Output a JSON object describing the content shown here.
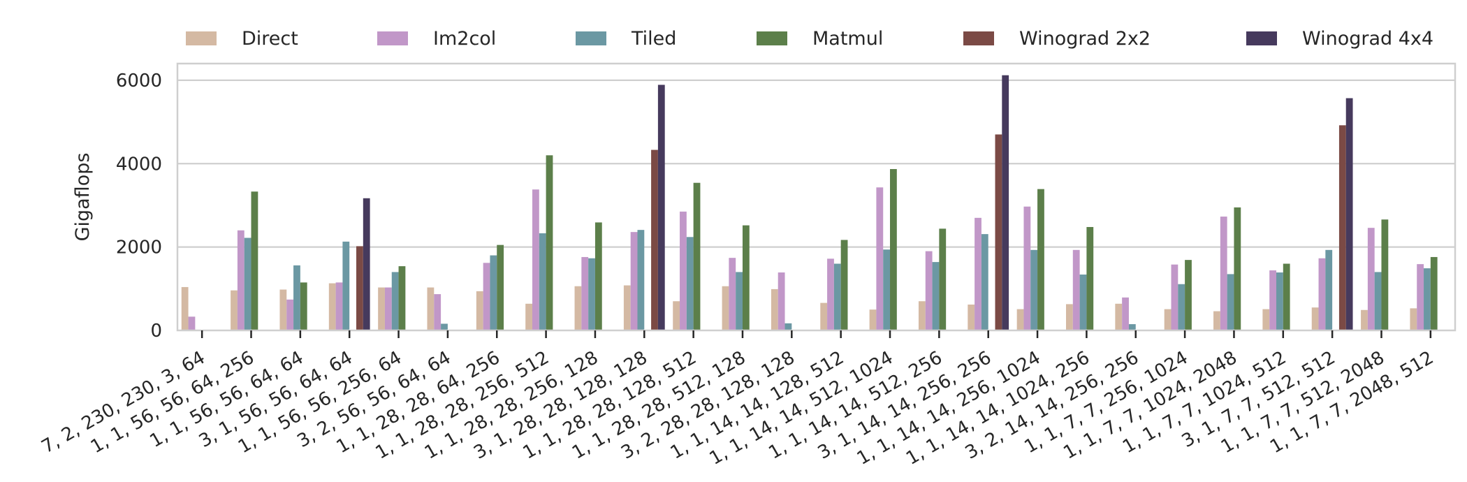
{
  "chart_data": {
    "type": "bar",
    "ylabel": "Gigaflops",
    "xlabel": "",
    "ylim": [
      0,
      6400
    ],
    "yticks": [
      0,
      2000,
      4000,
      6000
    ],
    "grid": "horizontal",
    "legend_position": "top",
    "categories": [
      "7, 2, 230, 230, 3, 64",
      "1, 1, 56, 56, 64, 256",
      "1, 1, 56, 56, 64, 64",
      "3, 1, 56, 56, 64, 64",
      "1, 1, 56, 56, 256, 64",
      "3, 2, 56, 56, 64, 64",
      "1, 1, 28, 28, 64, 256",
      "1, 1, 28, 28, 256, 512",
      "1, 1, 28, 28, 256, 128",
      "3, 1, 28, 28, 128, 128",
      "1, 1, 28, 28, 128, 512",
      "1, 1, 28, 28, 512, 128",
      "3, 2, 28, 28, 128, 128",
      "1, 1, 14, 14, 128, 512",
      "1, 1, 14, 14, 512, 1024",
      "1, 1, 14, 14, 512, 256",
      "3, 1, 14, 14, 256, 256",
      "1, 1, 14, 14, 256, 1024",
      "1, 1, 14, 14, 1024, 256",
      "3, 2, 14, 14, 256, 256",
      "1, 1, 7, 7, 256, 1024",
      "1, 1, 7, 7, 1024, 2048",
      "1, 1, 7, 7, 1024, 512",
      "3, 1, 7, 7, 512, 512",
      "1, 1, 7, 7, 512, 2048",
      "1, 1, 7, 7, 2048, 512"
    ],
    "series": [
      {
        "name": "Direct",
        "color": "#d4b9a3",
        "values": [
          1040,
          960,
          980,
          1130,
          1030,
          1030,
          940,
          640,
          1060,
          1080,
          700,
          1060,
          990,
          660,
          500,
          700,
          620,
          510,
          630,
          640,
          510,
          460,
          510,
          550,
          490,
          530
        ]
      },
      {
        "name": "Im2col",
        "color": "#c197c8",
        "values": [
          330,
          2400,
          740,
          1150,
          1030,
          870,
          1620,
          3380,
          1760,
          2360,
          2850,
          1740,
          1390,
          1720,
          3430,
          1900,
          2700,
          2970,
          1930,
          790,
          1580,
          2730,
          1440,
          1730,
          2460,
          1590
        ]
      },
      {
        "name": "Tiled",
        "color": "#6b98a3",
        "values": [
          0,
          2220,
          1560,
          2130,
          1400,
          160,
          1800,
          2330,
          1730,
          2410,
          2240,
          1400,
          170,
          1600,
          1940,
          1640,
          2310,
          1930,
          1340,
          150,
          1110,
          1350,
          1390,
          1930,
          1400,
          1490
        ]
      },
      {
        "name": "Matmul",
        "color": "#5c7f4a",
        "values": [
          0,
          3330,
          1150,
          0,
          1540,
          0,
          2050,
          4200,
          2590,
          0,
          3540,
          2520,
          0,
          2170,
          3870,
          2440,
          0,
          3390,
          2480,
          0,
          1690,
          2950,
          1600,
          0,
          2660,
          1760
        ]
      },
      {
        "name": "Winograd 2x2",
        "color": "#7b4a45",
        "values": [
          0,
          0,
          0,
          2020,
          0,
          0,
          0,
          0,
          0,
          4330,
          0,
          0,
          0,
          0,
          0,
          0,
          4700,
          0,
          0,
          0,
          0,
          0,
          0,
          4920,
          0,
          0
        ]
      },
      {
        "name": "Winograd 4x4",
        "color": "#463a5d",
        "values": [
          0,
          0,
          0,
          3170,
          0,
          0,
          0,
          0,
          0,
          5890,
          0,
          0,
          0,
          0,
          0,
          0,
          6120,
          0,
          0,
          0,
          0,
          0,
          0,
          5570,
          0,
          0
        ]
      }
    ]
  }
}
